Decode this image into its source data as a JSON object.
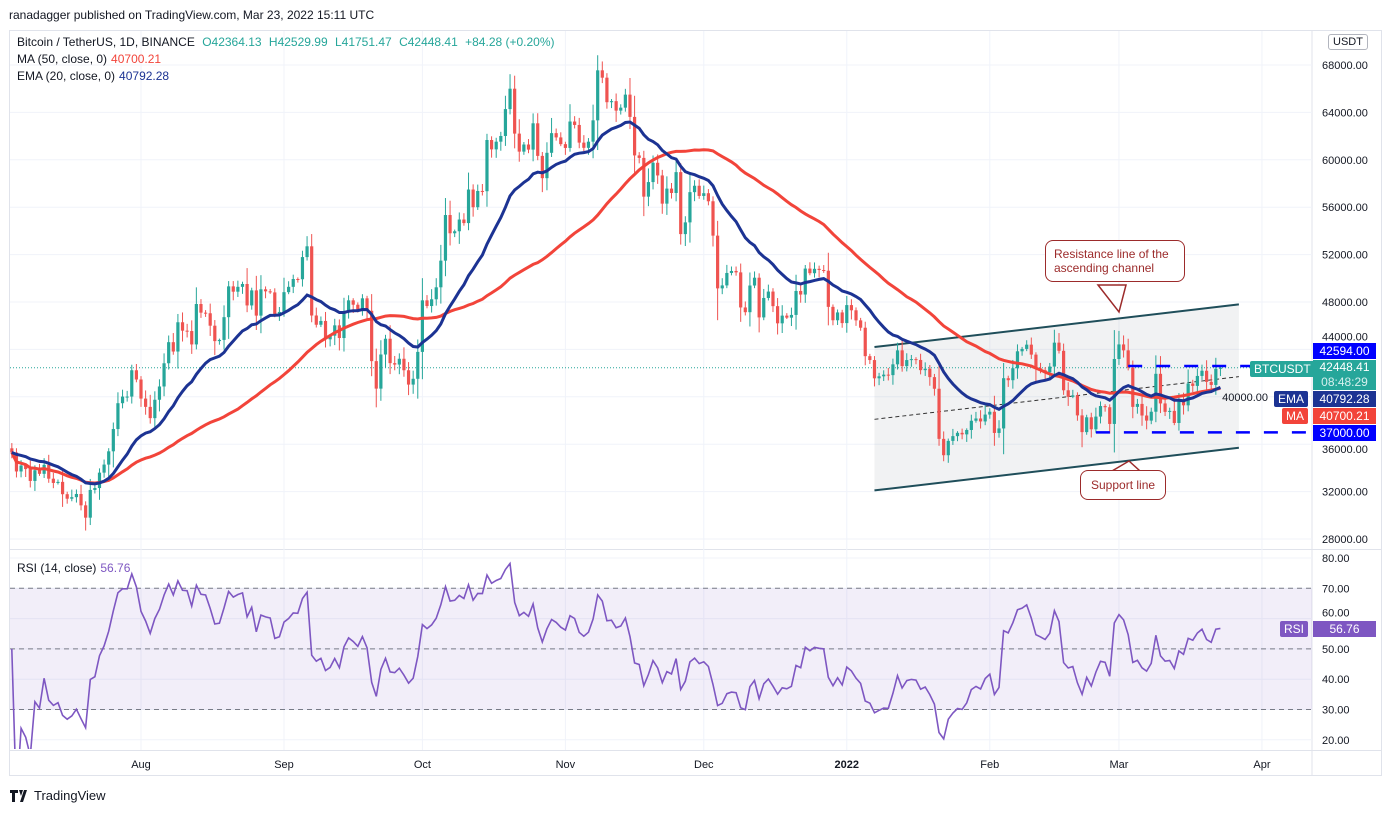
{
  "published": "ranadagger published on TradingView.com, Mar 23, 2022 15:11 UTC",
  "legend": {
    "symbol": "Bitcoin / TetherUS, 1D, BINANCE",
    "open": "O42364.13",
    "high": "H42529.99",
    "low": "L41751.47",
    "close": "C42448.41",
    "change": "+84.28 (+0.20%)",
    "ma_label": "MA (50, close, 0)",
    "ma_value": "40700.21",
    "ema_label": "EMA (20, close, 0)",
    "ema_value": "40792.28",
    "rsi_label": "RSI (14, close)",
    "rsi_value": "56.76"
  },
  "currency": "USDT",
  "badges": {
    "resistance": "42594.00",
    "last_price": "42448.41",
    "countdown": "08:48:29",
    "symbol_tag": "BTCUSDT",
    "ema_tag": "EMA",
    "ema_value": "40792.28",
    "ma_tag": "MA",
    "ma_value": "40700.21",
    "support": "37000.00",
    "rsi_tag": "RSI",
    "rsi_value": "56.76"
  },
  "annotations": {
    "resistance_callout": "Resistance line of the ascending channel",
    "support_callout": "Support line"
  },
  "footer": {
    "brand": "TradingView"
  },
  "colors": {
    "up": "#26a69a",
    "down": "#ef5350",
    "ma": "#f2443a",
    "ema": "#1c3393",
    "rsi": "#7e57c2",
    "level": "#0000ff",
    "channel": "#1f4e5a"
  },
  "chart_data": {
    "type": "candlestick",
    "title": "Bitcoin / TetherUS, 1D, BINANCE",
    "price_ticks": [
      "68000.00",
      "64000.00",
      "60000.00",
      "56000.00",
      "52000.00",
      "48000.00",
      "44000.00",
      "40000.00",
      "36000.00",
      "32000.00",
      "28000.00"
    ],
    "rsi_ticks": [
      "80.00",
      "70.00",
      "60.00",
      "50.00",
      "40.00",
      "30.00",
      "20.00"
    ],
    "time_ticks": [
      "Aug",
      "Sep",
      "Oct",
      "Nov",
      "Dec",
      "2022",
      "Feb",
      "Mar",
      "Apr"
    ],
    "ylim": [
      26500,
      70500
    ],
    "rsi_levels": {
      "upper": 70,
      "middle": 50,
      "lower": 30
    },
    "indicators": [
      "MA 50",
      "EMA 20",
      "RSI 14"
    ],
    "candles": [
      {
        "month": "2021-07",
        "start_day": 4,
        "closes": [
          35300,
          33700,
          34200,
          33900,
          32900,
          33800,
          33500,
          34260,
          33090,
          32730,
          32820,
          31780,
          31400,
          31530,
          31800,
          30840,
          29800,
          32140,
          32300,
          33600,
          34280,
          35400,
          37280,
          39460,
          40020,
          40020,
          42240,
          41460
        ]
      },
      {
        "month": "2021-08",
        "start_day": 1,
        "closes": [
          39850,
          39150,
          38200,
          39750,
          40870,
          42830,
          44610,
          43820,
          46290,
          45580,
          45550,
          44420,
          47830,
          47100,
          47050,
          46000,
          44700,
          44800,
          46720,
          49320,
          48870,
          49280,
          49520,
          47710,
          48980,
          46850,
          49070,
          48900,
          48810,
          46990,
          47160
        ]
      },
      {
        "month": "2021-09",
        "start_day": 1,
        "closes": [
          48830,
          49280,
          49940,
          49920,
          51790,
          52700,
          46860,
          46080,
          46400,
          44850,
          45160,
          46030,
          44960,
          47110,
          48140,
          47770,
          47300,
          48310,
          47260,
          43010,
          40690,
          43570,
          44900,
          42840,
          42720,
          43210,
          42240,
          41030,
          41520,
          43790
        ]
      },
      {
        "month": "2021-10",
        "start_day": 1,
        "closes": [
          48140,
          47660,
          48230,
          49240,
          51490,
          55340,
          53800,
          53970,
          54960,
          54660,
          57490,
          56000,
          57370,
          57350,
          61670,
          60880,
          61530,
          62010,
          64280,
          66000,
          62210,
          60690,
          61290,
          60860,
          63080,
          60330,
          58450,
          60590,
          62250,
          61890,
          61320
        ]
      },
      {
        "month": "2021-11",
        "start_day": 1,
        "closes": [
          61000,
          63230,
          62940,
          61450,
          61010,
          61530,
          63330,
          67550,
          66930,
          64860,
          64950,
          64150,
          64400,
          65500,
          63620,
          60370,
          60160,
          56890,
          58120,
          59750,
          58680,
          56300,
          57570,
          57200,
          58960,
          53730,
          54720,
          57270,
          57810,
          56950
        ]
      },
      {
        "month": "2021-12",
        "start_day": 1,
        "closes": [
          57180,
          56500,
          53600,
          49150,
          49400,
          50450,
          50620,
          50500,
          47540,
          47140,
          49390,
          50050,
          46700,
          48340,
          48880,
          47650,
          46200,
          46850,
          46680,
          46910,
          48930,
          48630,
          50820,
          50430,
          50800,
          50700,
          50640,
          47590,
          46460,
          47120,
          46220
        ]
      },
      {
        "month": "2022-01",
        "start_day": 1,
        "closes": [
          47740,
          47300,
          46450,
          45830,
          43430,
          43100,
          41560,
          41730,
          41870,
          41830,
          42740,
          43920,
          42590,
          43100,
          43180,
          43110,
          42250,
          42370,
          41660,
          40680,
          36450,
          35070,
          36280,
          36680,
          36960,
          36830,
          37200,
          37980,
          38170,
          37920,
          38500
        ]
      },
      {
        "month": "2022-02",
        "start_day": 1,
        "closes": [
          38740,
          36950,
          37330,
          41570,
          41400,
          42410,
          43840,
          44040,
          44400,
          43560,
          42400,
          42240,
          42060,
          42550,
          44570,
          43880,
          40550,
          40000,
          40120,
          38430,
          37020,
          38270,
          37260,
          38330,
          39220,
          39120,
          37710,
          43190
        ]
      },
      {
        "month": "2022-03",
        "start_day": 1,
        "closes": [
          44420,
          43920,
          42460,
          39150,
          39400,
          38420,
          37990,
          38740,
          41940,
          39440,
          38730,
          38810,
          37790,
          39670,
          39280,
          41120,
          40920,
          41760,
          42200,
          41260,
          41000,
          42364.13,
          42448.41
        ]
      }
    ],
    "last_bar": {
      "open": 42364.13,
      "high": 42529.99,
      "low": 41751.47,
      "close": 42448.41
    },
    "channel": {
      "upper": [
        [
          "2022-01-07",
          44200
        ],
        [
          "2022-03-27",
          47800
        ]
      ],
      "middle": [
        [
          "2022-01-07",
          38100
        ],
        [
          "2022-03-27",
          41700
        ]
      ],
      "lower": [
        [
          "2022-01-07",
          32100
        ],
        [
          "2022-03-27",
          35700
        ]
      ]
    },
    "levels": [
      {
        "price": 42594,
        "from": "2022-03-03"
      },
      {
        "price": 37000,
        "from": "2022-02-24"
      }
    ]
  }
}
